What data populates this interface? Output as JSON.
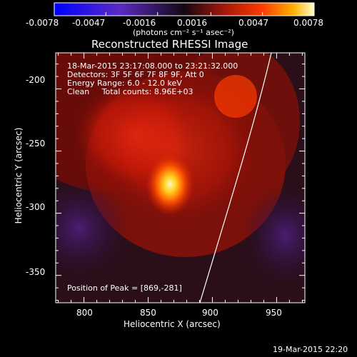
{
  "colorbar": {
    "ticks": [
      "-0.0078",
      "-0.0047",
      "-0.0016",
      "0.0016",
      "0.0047",
      "0.0078"
    ],
    "range": [
      -0.0078,
      0.0078
    ],
    "units_label": "(photons cm⁻² s⁻¹ asec⁻²)"
  },
  "title": "Reconstructed RHESSI Image",
  "info": {
    "time": "18-Mar-2015 23:17:08.000 to 23:21:32.000",
    "detectors": "Detectors: 3F 5F 6F 7F 8F 9F, Att 0",
    "energy": "Energy Range: 6.0 - 12.0 keV",
    "clean": "Clean     Total counts: 8.96E+03"
  },
  "peak": "Position of Peak = [869,-281]",
  "axes": {
    "xlabel": "Heliocentric X (arcsec)",
    "ylabel": "Heliocentric Y (arcsec)",
    "xlim": [
      778,
      972
    ],
    "ylim": [
      -372,
      -171
    ],
    "xticks": [
      "800",
      "850",
      "900",
      "950"
    ],
    "yticks": [
      "-200",
      "-250",
      "-300",
      "-350"
    ]
  },
  "timestamp": "19-Mar-2015 22:20"
}
